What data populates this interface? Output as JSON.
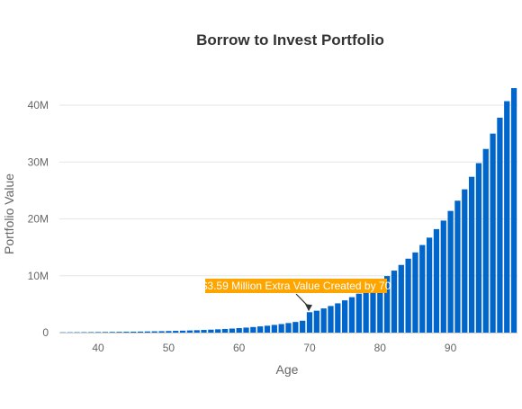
{
  "chart_data": {
    "type": "bar",
    "title": "Borrow to Invest Portfolio",
    "xlabel": "Age",
    "ylabel": "Portfolio Value",
    "x_range": [
      35,
      100
    ],
    "xticks": [
      40,
      50,
      60,
      70,
      80,
      90
    ],
    "ylim": [
      0,
      40000000
    ],
    "yticks": [
      {
        "value": 0,
        "label": "0"
      },
      {
        "value": 10000000,
        "label": "10M"
      },
      {
        "value": 20000000,
        "label": "20M"
      },
      {
        "value": 30000000,
        "label": "30M"
      },
      {
        "value": 40000000,
        "label": "40M"
      }
    ],
    "grid": true,
    "legend": "none",
    "bar_color": "#0066cc",
    "series": [
      {
        "x": [
          35,
          36,
          37,
          38,
          39,
          40,
          41,
          42,
          43,
          44,
          45,
          46,
          47,
          48,
          49,
          50,
          51,
          52,
          53,
          54,
          55,
          56,
          57,
          58,
          59,
          60,
          61,
          62,
          63,
          64,
          65,
          66,
          67,
          68,
          69,
          70,
          71,
          72,
          73,
          74,
          75,
          76,
          77,
          78,
          79,
          80,
          81,
          82,
          83,
          84,
          85,
          86,
          87,
          88,
          89,
          90,
          91,
          92,
          93,
          94,
          95,
          96,
          97,
          98,
          99
        ],
        "values": [
          50000,
          58000,
          66000,
          75000,
          84000,
          94000,
          105000,
          117000,
          130000,
          145000,
          162000,
          180000,
          200000,
          222000,
          247000,
          274000,
          305000,
          339000,
          377000,
          419000,
          465000,
          517000,
          575000,
          639000,
          710000,
          790000,
          880000,
          980000,
          1090000,
          1210000,
          1350000,
          1500000,
          1680000,
          1870000,
          2090000,
          3590000,
          3850000,
          4250000,
          4680000,
          5150000,
          5670000,
          6230000,
          6850000,
          7530000,
          8280000,
          9100000,
          9950000,
          10900000,
          11900000,
          13000000,
          14100000,
          15400000,
          16700000,
          18200000,
          19700000,
          21400000,
          23200000,
          25200000,
          27400000,
          29800000,
          32300000,
          35000000,
          37800000,
          40700000,
          43000000
        ]
      }
    ],
    "annotations": [
      {
        "text": "$3.59 Million Extra Value Created by 70",
        "x": 70,
        "y": 3590000,
        "color": "#ffa500"
      }
    ]
  }
}
